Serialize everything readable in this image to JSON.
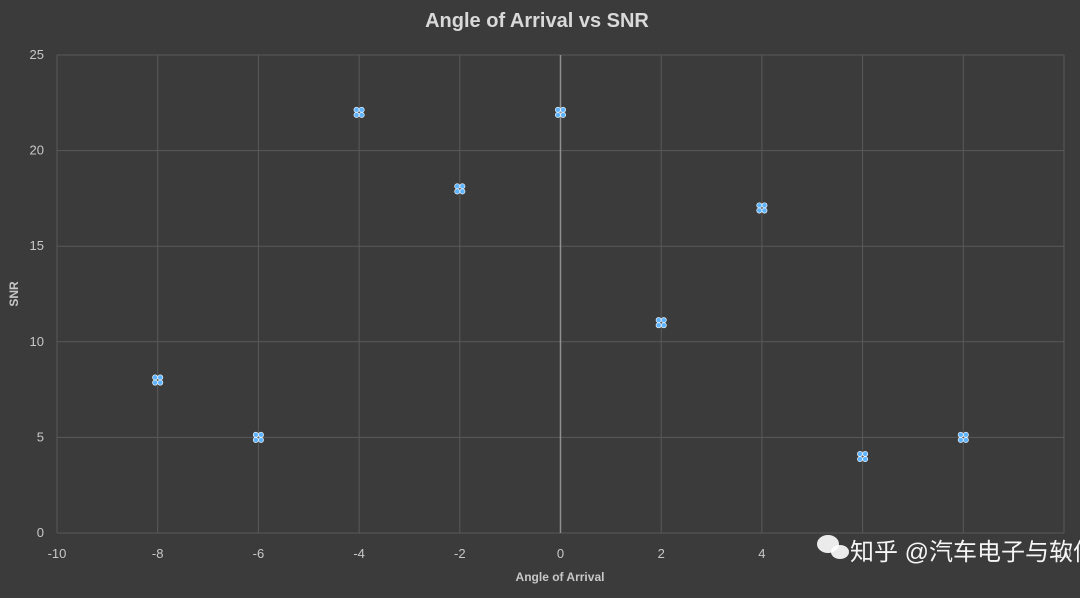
{
  "chart_data": {
    "type": "scatter",
    "title": "Angle of Arrival vs SNR",
    "xlabel": "Angle of Arrival",
    "ylabel": "SNR",
    "xlim": [
      -10,
      10
    ],
    "ylim": [
      0,
      25
    ],
    "x_ticks": [
      -10,
      -8,
      -6,
      -4,
      -2,
      0,
      2,
      4,
      6,
      8,
      10
    ],
    "x_tick_labels": [
      "-10",
      "-8",
      "-6",
      "-4",
      "-2",
      "0",
      "2",
      "4",
      "",
      "",
      "10"
    ],
    "y_ticks": [
      0,
      5,
      10,
      15,
      20,
      25
    ],
    "y_tick_labels": [
      "0",
      "5",
      "10",
      "15",
      "20",
      "25"
    ],
    "grid": true,
    "series": [
      {
        "points": [
          {
            "x": -8,
            "y": 8
          },
          {
            "x": -6,
            "y": 5
          },
          {
            "x": -4,
            "y": 22
          },
          {
            "x": -2,
            "y": 18
          },
          {
            "x": 0,
            "y": 22
          },
          {
            "x": 2,
            "y": 11
          },
          {
            "x": 4,
            "y": 17
          },
          {
            "x": 6,
            "y": 4
          },
          {
            "x": 8,
            "y": 5
          }
        ],
        "color": "#5fb4ff"
      }
    ]
  },
  "watermark": {
    "text": "知乎 @汽车电子与软件 william"
  }
}
